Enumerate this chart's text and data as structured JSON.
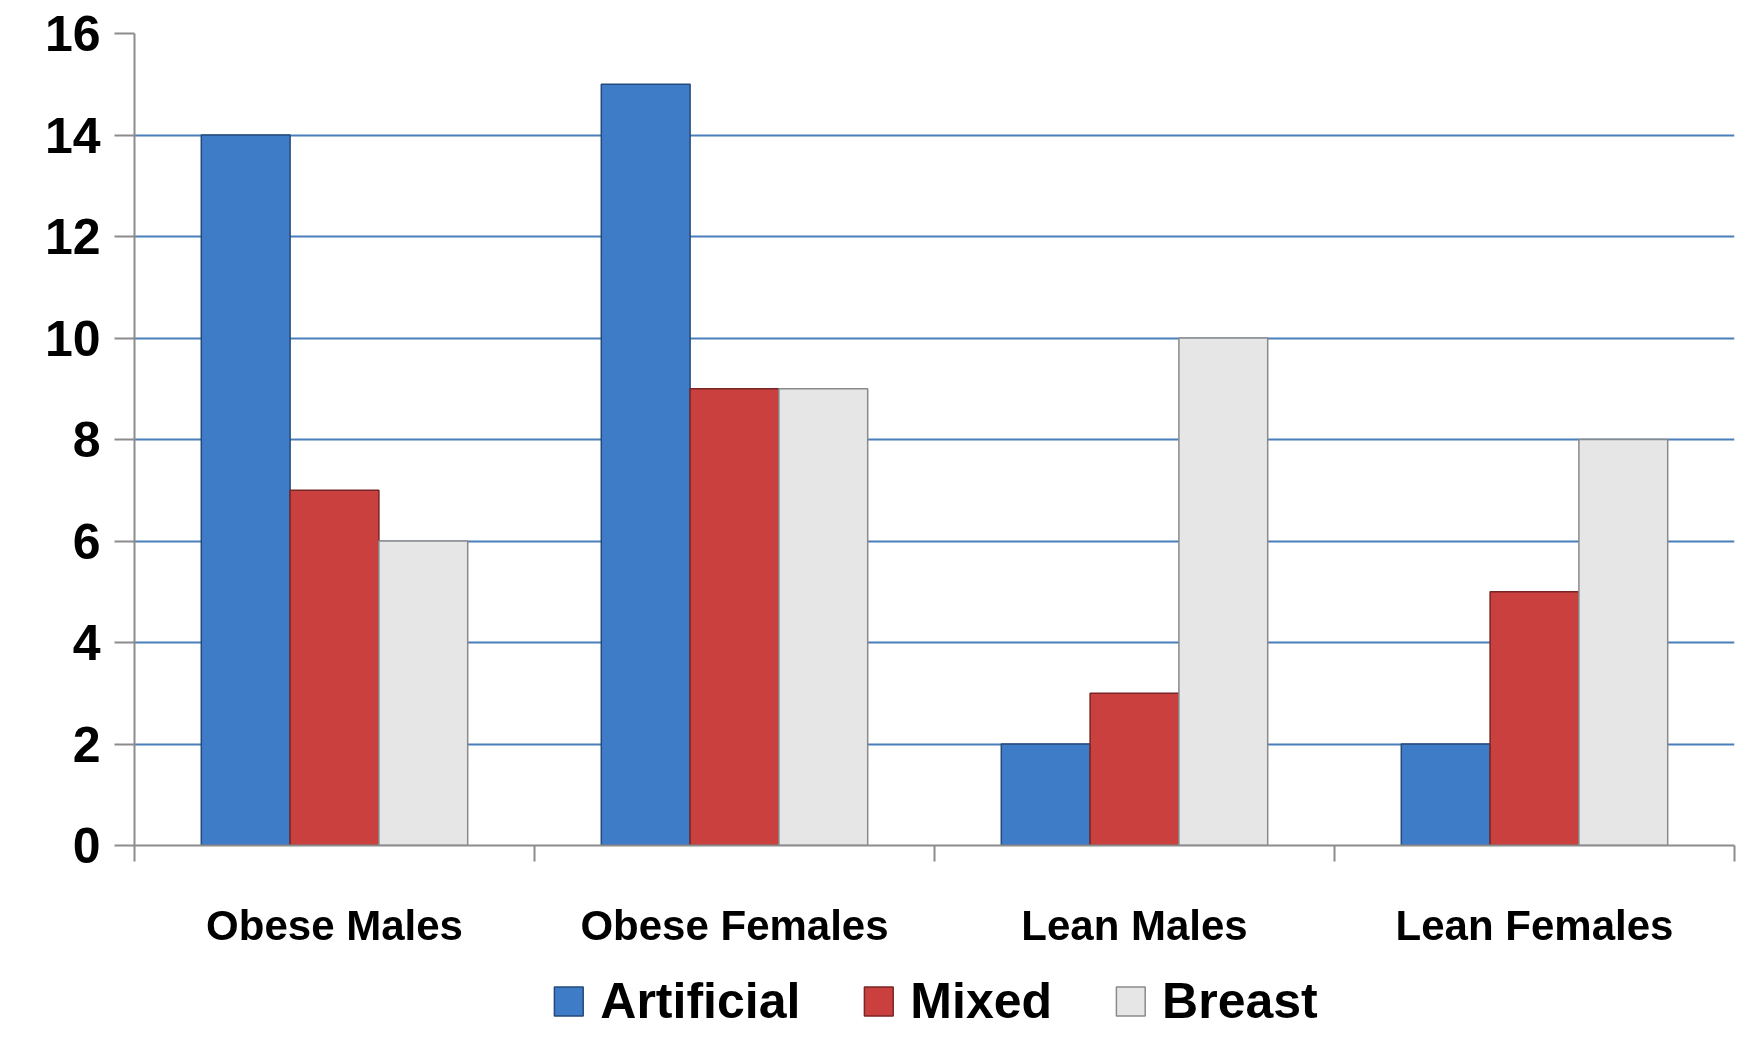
{
  "chart_data": {
    "type": "bar",
    "categories": [
      "Obese Males",
      "Obese Females",
      "Lean Males",
      "Lean Females"
    ],
    "series": [
      {
        "name": "Artificial",
        "color": "#3f7cc8",
        "values": [
          14,
          15,
          2,
          2
        ]
      },
      {
        "name": "Mixed",
        "color": "#c9403e",
        "values": [
          7,
          9,
          3,
          5
        ]
      },
      {
        "name": "Breast",
        "color": "#e6e6e6",
        "values": [
          6,
          9,
          10,
          8
        ]
      }
    ],
    "ylim": [
      0,
      16
    ],
    "yticks": [
      0,
      2,
      4,
      6,
      8,
      10,
      12,
      14,
      16
    ],
    "grid": "y",
    "legend": "bottom"
  }
}
